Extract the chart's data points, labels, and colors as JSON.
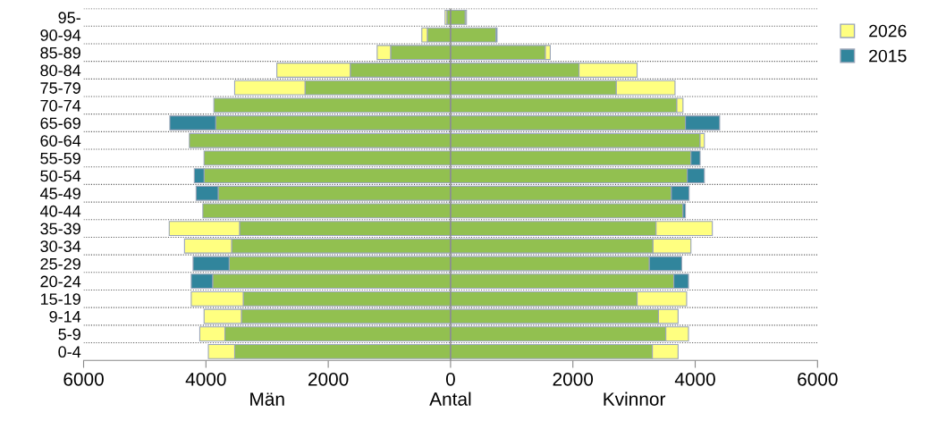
{
  "chart_data": {
    "type": "bar",
    "orientation": "horizontal",
    "stacked": true,
    "categories": [
      "95-",
      "90-94",
      "85-89",
      "80-84",
      "75-79",
      "70-74",
      "65-69",
      "60-64",
      "55-59",
      "50-54",
      "45-49",
      "40-44",
      "35-39",
      "30-34",
      "25-29",
      "20-24",
      "15-19",
      "9-14",
      "5-9",
      "0-4"
    ],
    "series": [
      {
        "color": "#92c050",
        "values": [
          -60,
          -380,
          -980,
          -1640,
          -2380,
          -3870,
          -3840,
          -4270,
          -4030,
          -4030,
          -3800,
          -4050,
          -3450,
          -3580,
          -3620,
          -3890,
          -3390,
          -3420,
          -3690,
          -3530
        ]
      },
      {
        "name": "2026",
        "color": "#ffff80",
        "values": [
          -30,
          -90,
          -220,
          -1200,
          -1150,
          null,
          null,
          null,
          null,
          null,
          null,
          null,
          -1150,
          -770,
          null,
          null,
          -850,
          -610,
          -410,
          -430
        ]
      },
      {
        "name": "2015",
        "color": "#31859c",
        "values": [
          null,
          null,
          null,
          null,
          null,
          null,
          -750,
          null,
          null,
          -160,
          -360,
          null,
          null,
          null,
          -590,
          -350,
          null,
          null,
          null,
          null
        ]
      },
      {
        "color": "#92c050",
        "values": [
          240,
          740,
          1550,
          2100,
          2710,
          3700,
          3840,
          4080,
          3930,
          3870,
          3610,
          3800,
          3360,
          3310,
          3250,
          3650,
          3050,
          3400,
          3520,
          3300
        ]
      },
      {
        "color": "#ffff80",
        "values": [
          20,
          null,
          80,
          950,
          960,
          100,
          null,
          70,
          null,
          null,
          null,
          null,
          920,
          620,
          null,
          null,
          810,
          320,
          370,
          420
        ]
      },
      {
        "color": "#31859c",
        "values": [
          null,
          20,
          null,
          null,
          null,
          null,
          560,
          null,
          150,
          280,
          290,
          40,
          null,
          null,
          530,
          240,
          null,
          null,
          null,
          null
        ]
      }
    ],
    "xlim": [
      -6000,
      6000
    ],
    "xticks": [
      {
        "value": -6000,
        "label": "6000"
      },
      {
        "value": -4000,
        "label": "4000"
      },
      {
        "value": -2000,
        "label": "2000"
      },
      0,
      2000,
      4000,
      6000
    ],
    "xlabel": "Antal",
    "annotations": [
      "Män",
      "Kvinnor"
    ],
    "grid": "y",
    "legend": "top right"
  }
}
